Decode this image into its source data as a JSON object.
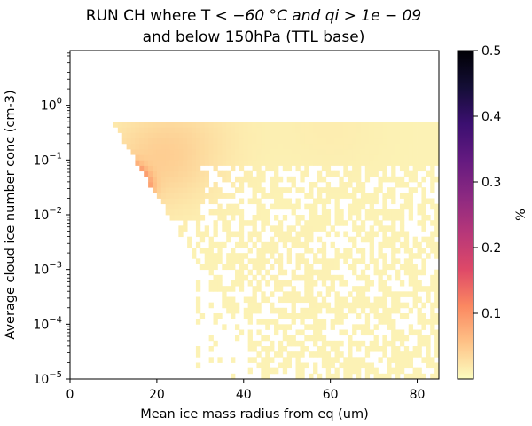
{
  "chart_data": {
    "type": "heatmap",
    "title_line1_prefix": "RUN CH where T",
    "title_line1_math": "< −60 °C and qi > 1e − 09",
    "title_line2": "and below 150hPa (TTL base)",
    "xlabel": "Mean ice mass radius from eq (um)",
    "ylabel": "Average cloud ice number conc (cm-3)",
    "colorbar_label": "%",
    "x_range": [
      0,
      85
    ],
    "x_ticks": [
      "0",
      "20",
      "40",
      "60",
      "80"
    ],
    "y_scale": "log",
    "y_range": [
      1e-05,
      10
    ],
    "y_ticks": [
      {
        "base": "10",
        "exp": "0"
      },
      {
        "base": "10",
        "exp": "−1"
      },
      {
        "base": "10",
        "exp": "−2"
      },
      {
        "base": "10",
        "exp": "−3"
      },
      {
        "base": "10",
        "exp": "−4"
      },
      {
        "base": "10",
        "exp": "−5"
      }
    ],
    "colorbar_range": [
      0,
      0.5
    ],
    "colorbar_ticks": [
      "0.5",
      "0.4",
      "0.3",
      "0.2",
      "0.1"
    ],
    "colormap": "magma_r",
    "colormap_stops": [
      "#fcfdbf",
      "#fec287",
      "#fb8861",
      "#de4968",
      "#b73779",
      "#8c2981",
      "#641a80",
      "#3b0f70",
      "#140e36",
      "#000004"
    ],
    "bins": {
      "x_bin_width_um": 1,
      "log10_y_bin_width": 0.1
    },
    "density_description_points": [
      {
        "x": 14,
        "y": 0.04,
        "percent": 0.12
      },
      {
        "x": 13,
        "y": 0.05,
        "percent": 0.1
      },
      {
        "x": 16,
        "y": 0.03,
        "percent": 0.08
      },
      {
        "x": 20,
        "y": 0.1,
        "percent": 0.03
      },
      {
        "x": 30,
        "y": 0.3,
        "percent": 0.01
      },
      {
        "x": 60,
        "y": 0.4,
        "percent": 0.005
      },
      {
        "x": 50,
        "y": 0.001,
        "percent": 0.002
      }
    ]
  }
}
